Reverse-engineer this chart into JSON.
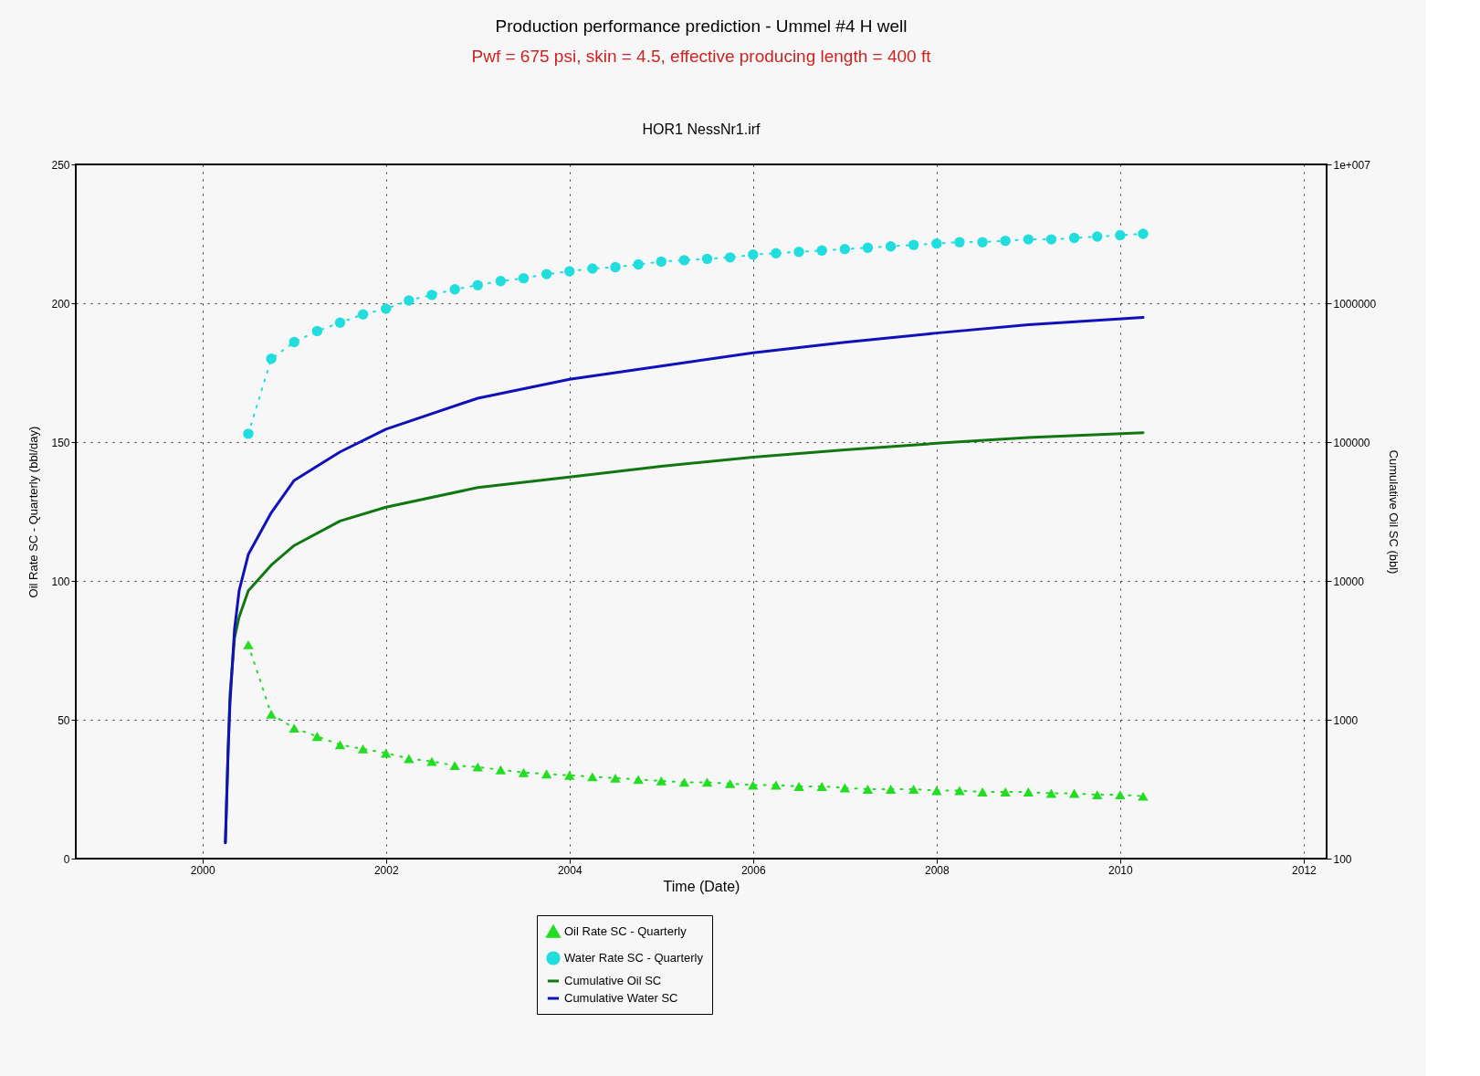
{
  "chart_data": {
    "type": "line",
    "title": "Production performance prediction - Ummel #4 H well",
    "subtitle": "Pwf = 675 psi, skin = 4.5, effective producing length = 400 ft",
    "annotations": [
      "HOR1 NessNr1.irf"
    ],
    "xlabel": "Time (Date)",
    "ylabel": "Oil Rate SC - Quarterly (bbl/day)",
    "y2label": "Cumulative Oil SC (bbl)",
    "xlim": [
      1998.62,
      2012.25
    ],
    "xticks": [
      2000,
      2002,
      2004,
      2006,
      2008,
      2010,
      2012
    ],
    "ylim": [
      0,
      250
    ],
    "yticks": [
      0,
      50,
      100,
      150,
      200,
      250
    ],
    "y2lim": [
      100,
      10000000
    ],
    "y2ticks": [
      100,
      1000,
      10000,
      100000,
      1000000,
      {
        "value": 10000000,
        "label": "1e+007"
      }
    ],
    "log": "y2",
    "grid": true,
    "legend": "bottom",
    "series": [
      {
        "name": "Oil Rate SC - Quarterly",
        "marker": "triangle",
        "line_style": "dotted",
        "color": "#22dd22",
        "x": [
          2000.5,
          2000.75,
          2001,
          2001.25,
          2001.5,
          2001.75,
          2002,
          2002.25,
          2002.5,
          2002.75,
          2003,
          2003.25,
          2003.5,
          2003.75,
          2004,
          2004.25,
          2004.5,
          2004.75,
          2005,
          2005.25,
          2005.5,
          2005.75,
          2006,
          2006.25,
          2006.5,
          2006.75,
          2007,
          2007.25,
          2007.5,
          2007.75,
          2008,
          2008.25,
          2008.5,
          2008.75,
          2009,
          2009.25,
          2009.5,
          2009.75,
          2010,
          2010.25
        ],
        "values": [
          77,
          52,
          47,
          44,
          41,
          39.5,
          38,
          36,
          35,
          33.5,
          33,
          32,
          31,
          30.5,
          30,
          29.5,
          29,
          28.5,
          28,
          27.5,
          27.5,
          27,
          26.5,
          26.5,
          26,
          26,
          25.5,
          25,
          25,
          25,
          24.5,
          24.5,
          24,
          24,
          24,
          23.5,
          23.5,
          23,
          23,
          22.5
        ]
      },
      {
        "name": "Water Rate SC - Quarterly",
        "marker": "circle",
        "line_style": "dotted",
        "color": "#22dddd",
        "x": [
          2000.5,
          2000.75,
          2001,
          2001.25,
          2001.5,
          2001.75,
          2002,
          2002.25,
          2002.5,
          2002.75,
          2003,
          2003.25,
          2003.5,
          2003.75,
          2004,
          2004.25,
          2004.5,
          2004.75,
          2005,
          2005.25,
          2005.5,
          2005.75,
          2006,
          2006.25,
          2006.5,
          2006.75,
          2007,
          2007.25,
          2007.5,
          2007.75,
          2008,
          2008.25,
          2008.5,
          2008.75,
          2009,
          2009.25,
          2009.5,
          2009.75,
          2010,
          2010.25
        ],
        "values": [
          153,
          180,
          186,
          190,
          193,
          196,
          198,
          201,
          203,
          205,
          206.5,
          208,
          209,
          210.5,
          211.5,
          212.5,
          213,
          214,
          215,
          215.5,
          216,
          216.5,
          217.5,
          218,
          218.5,
          219,
          219.5,
          220,
          220.5,
          221,
          221.5,
          222,
          222,
          222.5,
          223,
          223,
          223.5,
          224,
          224.5,
          225
        ]
      },
      {
        "name": "Cumulative Oil SC",
        "axis": "y2",
        "marker": "none",
        "line_style": "solid",
        "color": "#117711",
        "x": [
          2000.25,
          2000.28,
          2000.3,
          2000.35,
          2000.4,
          2000.5,
          2000.75,
          2001,
          2001.5,
          2002,
          2003,
          2004,
          2005,
          2006,
          2007,
          2008,
          2009,
          2010.25
        ],
        "values": [
          130,
          600,
          1500,
          3900,
          5500,
          8500,
          13000,
          18000,
          27000,
          34000,
          47000,
          56000,
          67000,
          78000,
          88000,
          98000,
          108000,
          117000
        ]
      },
      {
        "name": "Cumulative Water SC",
        "axis": "y2",
        "marker": "none",
        "line_style": "solid",
        "color": "#1111bb",
        "x": [
          2000.25,
          2000.28,
          2000.3,
          2000.35,
          2000.4,
          2000.5,
          2000.75,
          2001,
          2001.5,
          2002,
          2003,
          2004,
          2005,
          2006,
          2007,
          2008,
          2009,
          2010.25
        ],
        "values": [
          130,
          600,
          1300,
          4500,
          8500,
          15500,
          31000,
          53000,
          85000,
          124000,
          207000,
          283000,
          353000,
          440000,
          523000,
          610000,
          700000,
          790000
        ]
      }
    ]
  }
}
